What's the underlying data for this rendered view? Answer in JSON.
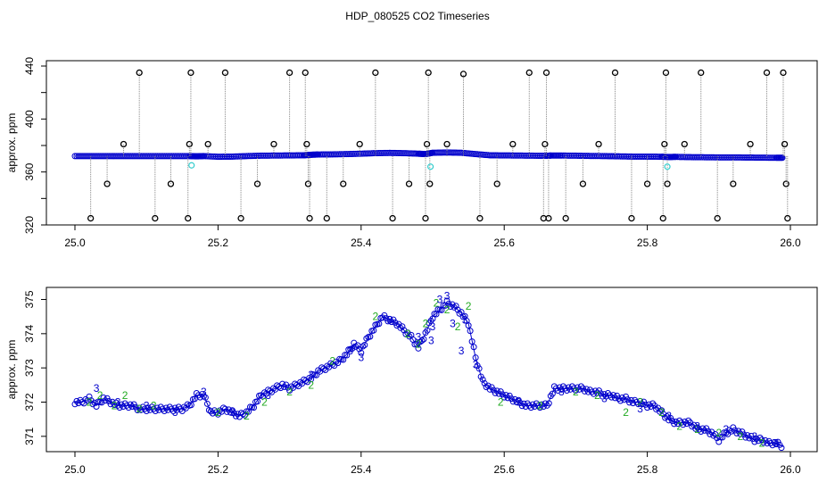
{
  "title": "HDP_080525  CO2 Timeseries",
  "colors": {
    "circle": "#0000cc",
    "extreme": "#000000",
    "stem": "#888888",
    "cyan": "#33cccc",
    "label2": "#22aa22",
    "label3": "#0000cc"
  },
  "chart_data": [
    {
      "type": "scatter",
      "ylabel": "approx. ppm",
      "xlim": [
        25.0,
        26.0
      ],
      "ylim": [
        320,
        440
      ],
      "xticks": [
        "25.0",
        "25.2",
        "25.4",
        "25.6",
        "25.8",
        "26.0"
      ],
      "yticks": [
        "320",
        "360",
        "400",
        "440"
      ],
      "series": [
        {
          "x": [
            25.0,
            25.02,
            25.04,
            25.06,
            25.08,
            25.1,
            25.12,
            25.14,
            25.16,
            25.17,
            25.18,
            25.2,
            25.22,
            25.24,
            25.26,
            25.28,
            25.3,
            25.32,
            25.33,
            25.34,
            25.36,
            25.38,
            25.4,
            25.42,
            25.44,
            25.46,
            25.48,
            25.49,
            25.5,
            25.52,
            25.54,
            25.56,
            25.58,
            25.6,
            25.62,
            25.64,
            25.66,
            25.665,
            25.68,
            25.7,
            25.72,
            25.74,
            25.76,
            25.78,
            25.8,
            25.82,
            25.83,
            25.84,
            25.86,
            25.88,
            25.9,
            25.92,
            25.94,
            25.96,
            25.98,
            25.99
          ],
          "y": [
            372,
            372,
            372,
            372,
            372,
            372,
            372,
            372,
            372,
            371.8,
            372,
            371.5,
            371.6,
            372,
            372.3,
            372.4,
            372.5,
            372.6,
            373,
            373.2,
            373.3,
            373.5,
            373.8,
            374.2,
            374.4,
            374.2,
            373.8,
            373.5,
            374.5,
            374.7,
            374.5,
            373.5,
            372.6,
            372.5,
            372.4,
            372.3,
            372.2,
            372.4,
            372.4,
            372.3,
            372.1,
            372.0,
            371.8,
            371.6,
            371.6,
            371.5,
            371.3,
            371.4,
            371.2,
            371.1,
            371.0,
            371.0,
            370.9,
            370.8,
            370.7,
            370.7
          ]
        },
        {
          "x": [
            25.022,
            25.045,
            25.068,
            25.09,
            25.112,
            25.134,
            25.158,
            25.16,
            25.162,
            25.186,
            25.21,
            25.232,
            25.255,
            25.278,
            25.3,
            25.322,
            25.324,
            25.326,
            25.328,
            25.352,
            25.375,
            25.398,
            25.42,
            25.444,
            25.467,
            25.49,
            25.492,
            25.494,
            25.496,
            25.52,
            25.543,
            25.566,
            25.59,
            25.612,
            25.635,
            25.655,
            25.657,
            25.659,
            25.662,
            25.686,
            25.71,
            25.732,
            25.755,
            25.778,
            25.8,
            25.822,
            25.824,
            25.826,
            25.828,
            25.852,
            25.875,
            25.898,
            25.92,
            25.944,
            25.967,
            25.99,
            25.992,
            25.994,
            25.996
          ],
          "y": [
            325,
            351,
            381,
            435,
            325,
            351,
            325,
            381,
            435,
            381,
            435,
            325,
            351,
            381,
            435,
            435,
            381,
            351,
            325,
            325,
            351,
            381,
            435,
            325,
            351,
            325,
            381,
            435,
            351,
            381,
            434,
            325,
            351,
            381,
            435,
            325,
            381,
            435,
            325,
            325,
            351,
            381,
            435,
            325,
            351,
            325,
            381,
            435,
            351,
            381,
            435,
            325,
            351,
            381,
            435,
            435,
            381,
            351,
            325
          ]
        },
        {
          "x": [
            25.163,
            25.497,
            25.828
          ],
          "y": [
            365,
            364,
            364
          ]
        }
      ]
    },
    {
      "type": "scatter",
      "ylabel": "approx. ppm",
      "xlim": [
        25.0,
        26.0
      ],
      "ylim": [
        370.5,
        375.3
      ],
      "xticks": [
        "25.0",
        "25.2",
        "25.4",
        "25.6",
        "25.8",
        "26.0"
      ],
      "yticks": [
        "371",
        "372",
        "373",
        "374",
        "375"
      ],
      "series": [
        {
          "x": [
            25.0,
            25.01,
            25.02,
            25.03,
            25.04,
            25.05,
            25.06,
            25.07,
            25.08,
            25.09,
            25.1,
            25.11,
            25.12,
            25.13,
            25.14,
            25.15,
            25.16,
            25.17,
            25.18,
            25.19,
            25.2,
            25.21,
            25.22,
            25.23,
            25.24,
            25.25,
            25.26,
            25.27,
            25.28,
            25.29,
            25.3,
            25.31,
            25.32,
            25.33,
            25.34,
            25.35,
            25.36,
            25.37,
            25.38,
            25.39,
            25.4,
            25.41,
            25.42,
            25.43,
            25.44,
            25.45,
            25.46,
            25.47,
            25.48,
            25.49,
            25.5,
            25.51,
            25.52,
            25.53,
            25.54,
            25.55,
            25.56,
            25.57,
            25.58,
            25.59,
            25.6,
            25.61,
            25.62,
            25.63,
            25.64,
            25.65,
            25.66,
            25.67,
            25.68,
            25.69,
            25.7,
            25.71,
            25.72,
            25.73,
            25.74,
            25.75,
            25.76,
            25.77,
            25.78,
            25.79,
            25.8,
            25.81,
            25.82,
            25.83,
            25.84,
            25.85,
            25.86,
            25.87,
            25.88,
            25.89,
            25.9,
            25.91,
            25.92,
            25.93,
            25.94,
            25.95,
            25.96,
            25.97,
            25.98,
            25.99
          ],
          "y": [
            372.0,
            372.0,
            372.1,
            371.9,
            372.1,
            372.0,
            371.9,
            371.9,
            371.9,
            371.8,
            371.8,
            371.8,
            371.8,
            371.8,
            371.8,
            371.8,
            371.9,
            372.2,
            372.2,
            371.7,
            371.7,
            371.8,
            371.7,
            371.6,
            371.7,
            371.9,
            372.2,
            372.3,
            372.4,
            372.5,
            372.4,
            372.5,
            372.6,
            372.7,
            372.9,
            373.0,
            373.1,
            373.2,
            373.4,
            373.7,
            373.5,
            373.9,
            374.2,
            374.5,
            374.4,
            374.3,
            374.1,
            373.9,
            373.6,
            374.0,
            374.5,
            374.7,
            374.9,
            374.8,
            374.6,
            374.3,
            373.3,
            372.6,
            372.4,
            372.3,
            372.2,
            372.1,
            372.0,
            371.9,
            371.9,
            371.9,
            371.9,
            372.4,
            372.4,
            372.4,
            372.4,
            372.4,
            372.3,
            372.3,
            372.2,
            372.2,
            372.1,
            372.1,
            372.0,
            372.0,
            371.9,
            371.9,
            371.7,
            371.5,
            371.4,
            371.4,
            371.4,
            371.2,
            371.2,
            371.1,
            370.9,
            371.1,
            371.2,
            371.1,
            371.0,
            370.9,
            370.9,
            370.8,
            370.8,
            370.7
          ]
        },
        {
          "x": [
            25.02,
            25.035,
            25.055,
            25.07,
            25.09,
            25.11,
            25.2,
            25.24,
            25.265,
            25.3,
            25.33,
            25.36,
            25.42,
            25.465,
            25.48,
            25.49,
            25.505,
            25.52,
            25.535,
            25.55,
            25.595,
            25.65,
            25.7,
            25.73,
            25.77,
            25.79,
            25.82,
            25.845,
            25.87,
            25.9,
            25.93,
            25.96
          ],
          "y": [
            372.0,
            372.2,
            371.9,
            372.2,
            371.8,
            371.9,
            371.7,
            371.6,
            372.0,
            372.3,
            372.5,
            373.2,
            374.5,
            374.0,
            373.7,
            374.3,
            374.9,
            374.7,
            374.2,
            374.8,
            372.0,
            371.9,
            372.3,
            372.2,
            371.7,
            372.0,
            371.7,
            371.3,
            371.2,
            371.1,
            371.0,
            370.8
          ]
        },
        {
          "x": [
            25.03,
            25.06,
            25.1,
            25.14,
            25.18,
            25.22,
            25.27,
            25.33,
            25.385,
            25.4,
            25.44,
            25.48,
            25.498,
            25.5,
            25.51,
            25.52,
            25.528,
            25.54,
            25.545,
            25.56,
            25.62,
            25.68,
            25.74,
            25.79,
            25.83,
            25.87,
            25.91,
            25.95,
            25.98
          ],
          "y": [
            372.4,
            372.0,
            371.9,
            371.7,
            372.3,
            371.7,
            372.2,
            372.8,
            373.5,
            373.3,
            374.4,
            373.9,
            373.8,
            374.2,
            375.0,
            375.1,
            374.3,
            373.5,
            374.4,
            373.1,
            372.0,
            372.3,
            372.1,
            371.8,
            371.6,
            371.3,
            371.2,
            371.0,
            370.8
          ]
        }
      ]
    }
  ]
}
